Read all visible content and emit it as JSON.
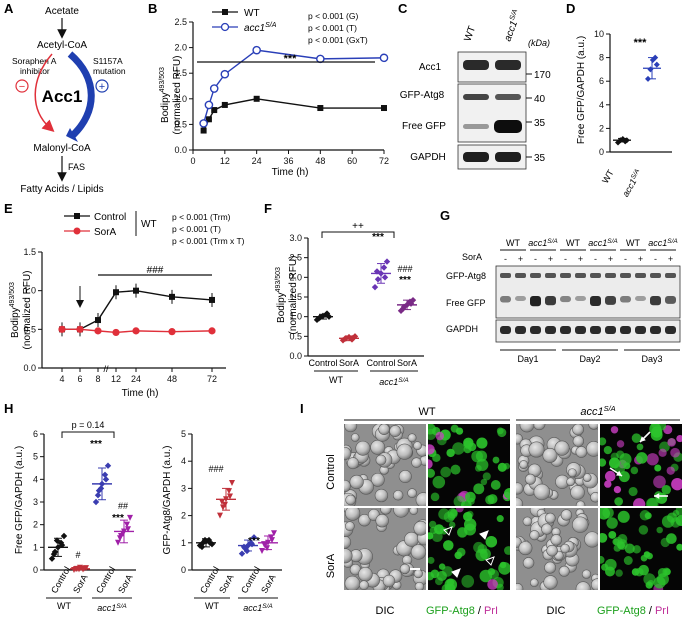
{
  "panels": {
    "A": {
      "letter": "A",
      "acetate": "Acetate",
      "acetyl_coa": "Acetyl-CoA",
      "inhibitor_line1": "Soraphen A",
      "inhibitor_line2": "inhibitor",
      "mutation_line1": "S1157A",
      "mutation_line2": "mutation",
      "minus": "−",
      "plus": "+",
      "enzyme": "Acc1",
      "malonyl_coa": "Malonyl-CoA",
      "fas": "FAS",
      "products": "Fatty Acids / Lipids",
      "colors": {
        "inhibit": "#e0303a",
        "activate": "#1f3fb0"
      }
    },
    "B": {
      "letter": "B",
      "stats": [
        "p < 0.001 (G)",
        "p < 0.001 (T)",
        "p < 0.001 (GxT)"
      ],
      "sig": "***",
      "legend": [
        "WT",
        "acc1"
      ],
      "legend_sup": "S/A",
      "ylabel_main": "Bodipy",
      "ylabel_sup": "493/503",
      "ylabel_sub": "(normalized RFU)",
      "xlabel": "Time (h)"
    },
    "C": {
      "letter": "C",
      "col_labels": [
        "WT",
        "acc1"
      ],
      "col_sup": "S/A",
      "kda": "(kDa)",
      "rows": [
        {
          "label": "Acc1",
          "marker": "170"
        },
        {
          "label": "GFP-Atg8",
          "marker": "40"
        },
        {
          "label": "Free GFP",
          "marker": "35"
        },
        {
          "label": "GAPDH",
          "marker": "35"
        }
      ]
    },
    "D": {
      "letter": "D",
      "sig": "***",
      "ylabel": "Free GFP/GAPDH (a.u.)",
      "xlabels": [
        "WT",
        "acc1"
      ],
      "xsup": "S/A"
    },
    "E": {
      "letter": "E",
      "legend": [
        "Control",
        "SorA"
      ],
      "legend_group": "WT",
      "stats": [
        "p < 0.001 (Trm)",
        "p < 0.001 (T)",
        "p < 0.001 (Trm x T)"
      ],
      "sig": "###",
      "ylabel_main": "Bodipy",
      "ylabel_sup": "493/503",
      "ylabel_sub": "(normalized RFU)",
      "xlabel": "Time (h)"
    },
    "F": {
      "letter": "F",
      "sig_top": "++",
      "sig_mid": "***",
      "sig_hash": "###",
      "sig_bot": "***",
      "ylabel_main": "Bodipy",
      "ylabel_sup": "493/503",
      "ylabel_sub": "(normalized RFU)",
      "xlabels": [
        "Control",
        "SorA",
        "Control",
        "SorA"
      ],
      "groups": [
        "WT",
        "acc1"
      ],
      "group_sup": "S/A"
    },
    "G": {
      "letter": "G",
      "col_groups": [
        "WT",
        "acc1",
        "WT",
        "acc1",
        "WT",
        "acc1"
      ],
      "col_sup": "S/A",
      "sora": "SorA",
      "signs": [
        "-",
        "+",
        "-",
        "+",
        "-",
        "+",
        "-",
        "+",
        "-",
        "+",
        "-",
        "+"
      ],
      "rows": [
        "GFP-Atg8",
        "Free GFP",
        "GAPDH"
      ],
      "days": [
        "Day1",
        "Day2",
        "Day3"
      ]
    },
    "H": {
      "letter": "H",
      "pval": "p = 0.14",
      "left_ylabel": "Free GFP/GAPDH (a.u.)",
      "right_ylabel": "GFP-Atg8/GAPDH (a.u.)",
      "left_sigs": [
        "***",
        "##",
        "***",
        "#"
      ],
      "right_sigs": [
        "###",
        "***"
      ],
      "xlabels": [
        "Control",
        "SorA",
        "Control",
        "SorA"
      ],
      "groups": [
        "WT",
        "acc1"
      ],
      "group_sup": "S/A"
    },
    "I": {
      "letter": "I",
      "col_groups": [
        "WT",
        "acc1"
      ],
      "col_sup": "S/A",
      "row_labels": [
        "Control",
        "SorA"
      ],
      "bottom_labels": [
        "DIC",
        "GFP-Atg8",
        "/",
        "PrI",
        "DIC",
        "GFP-Atg8",
        "/",
        "PrI"
      ]
    }
  },
  "chart_data": [
    {
      "id": "B",
      "type": "line",
      "x": [
        4,
        6,
        8,
        12,
        24,
        48,
        72
      ],
      "series": [
        {
          "name": "WT",
          "values": [
            0.38,
            0.6,
            0.78,
            0.88,
            1.0,
            0.82,
            0.82
          ]
        },
        {
          "name": "acc1S/A",
          "values": [
            0.52,
            0.88,
            1.2,
            1.48,
            1.95,
            1.78,
            1.8
          ]
        }
      ],
      "xlabel": "Time (h)",
      "ylabel": "Bodipy493/503 (normalized RFU)",
      "xlim": [
        0,
        72
      ],
      "ylim": [
        0,
        2.5
      ],
      "xticks": [
        0,
        12,
        24,
        36,
        48,
        60,
        72
      ],
      "yticks": [
        0.0,
        0.5,
        1.0,
        1.5,
        2.0,
        2.5
      ]
    },
    {
      "id": "D",
      "type": "scatter",
      "categories": [
        "WT",
        "acc1S/A"
      ],
      "points": [
        [
          0.8,
          1.0,
          1.1,
          0.9,
          1.0
        ],
        [
          6.2,
          7.0,
          7.8,
          8.0,
          7.4
        ]
      ],
      "means": [
        1.0,
        7.1
      ],
      "sd": [
        0.15,
        0.9
      ],
      "ylabel": "Free GFP/GAPDH (a.u.)",
      "ylim": [
        0,
        10
      ],
      "yticks": [
        0,
        2,
        4,
        6,
        8,
        10
      ]
    },
    {
      "id": "E",
      "type": "line",
      "tick_labels": [
        "4",
        "6",
        "8",
        "12",
        "24",
        "48",
        "72"
      ],
      "series": [
        {
          "name": "Control",
          "values": [
            0.5,
            0.5,
            0.62,
            0.98,
            1.0,
            0.92,
            0.88
          ]
        },
        {
          "name": "SorA",
          "values": [
            0.5,
            0.5,
            0.48,
            0.46,
            0.48,
            0.47,
            0.48
          ]
        }
      ],
      "xlabel": "Time (h)",
      "ylabel": "Bodipy493/503 (normalized RFU)",
      "ylim": [
        0,
        1.5
      ],
      "yticks": [
        0.0,
        0.5,
        1.0,
        1.5
      ]
    },
    {
      "id": "F",
      "type": "scatter",
      "categories": [
        "WT Control",
        "WT SorA",
        "acc1S/A Control",
        "acc1S/A SorA"
      ],
      "means": [
        1.0,
        0.45,
        2.1,
        1.3
      ],
      "sd": [
        0.06,
        0.06,
        0.25,
        0.12
      ],
      "points": [
        [
          0.92,
          0.98,
          1.02,
          1.05,
          1.0,
          0.96,
          1.08
        ],
        [
          0.4,
          0.45,
          0.48,
          0.42,
          0.5,
          0.44,
          0.46
        ],
        [
          1.75,
          1.95,
          2.1,
          2.25,
          2.4,
          2.15,
          2.0
        ],
        [
          1.15,
          1.25,
          1.3,
          1.38,
          1.42,
          1.2,
          1.33
        ]
      ],
      "ylabel": "Bodipy493/503 (normalized RFU)",
      "ylim": [
        0,
        3.0
      ],
      "yticks": [
        0.0,
        0.5,
        1.0,
        1.5,
        2.0,
        2.5,
        3.0
      ]
    },
    {
      "id": "H-left",
      "type": "scatter",
      "categories": [
        "WT Control",
        "WT SorA",
        "acc1S/A Control",
        "acc1S/A SorA"
      ],
      "means": [
        1.0,
        0.05,
        3.8,
        1.7
      ],
      "sd": [
        0.4,
        0.05,
        0.7,
        0.5
      ],
      "points": [
        [
          0.5,
          0.8,
          1.0,
          1.2,
          1.5,
          0.7,
          1.1,
          1.3
        ],
        [
          0.0,
          0.05,
          0.1,
          0.02,
          0.08,
          0.04,
          0.06,
          0.03
        ],
        [
          3.0,
          3.5,
          3.8,
          4.2,
          4.6,
          3.3,
          4.0,
          3.6
        ],
        [
          1.2,
          1.5,
          1.7,
          2.0,
          2.3,
          1.4,
          1.8,
          1.6
        ]
      ],
      "ylabel": "Free GFP/GAPDH (a.u.)",
      "ylim": [
        0,
        6
      ],
      "yticks": [
        0,
        1,
        2,
        3,
        4,
        5,
        6
      ]
    },
    {
      "id": "H-right",
      "type": "scatter",
      "categories": [
        "WT Control",
        "WT SorA",
        "acc1S/A Control",
        "acc1S/A SorA"
      ],
      "means": [
        1.0,
        2.6,
        0.9,
        1.0
      ],
      "sd": [
        0.15,
        0.4,
        0.2,
        0.25
      ],
      "points": [
        [
          0.9,
          1.0,
          1.05,
          1.1,
          0.95,
          0.85,
          1.0,
          1.1
        ],
        [
          2.0,
          2.3,
          2.6,
          2.9,
          3.2,
          2.5,
          2.7,
          2.4
        ],
        [
          0.6,
          0.8,
          0.9,
          1.0,
          1.2,
          0.85,
          0.95,
          0.7
        ],
        [
          0.7,
          0.9,
          1.0,
          1.2,
          1.35,
          0.95,
          1.1,
          0.8
        ]
      ],
      "ylabel": "GFP-Atg8/GAPDH (a.u.)",
      "ylim": [
        0,
        5
      ],
      "yticks": [
        0,
        1,
        2,
        3,
        4,
        5
      ]
    }
  ]
}
